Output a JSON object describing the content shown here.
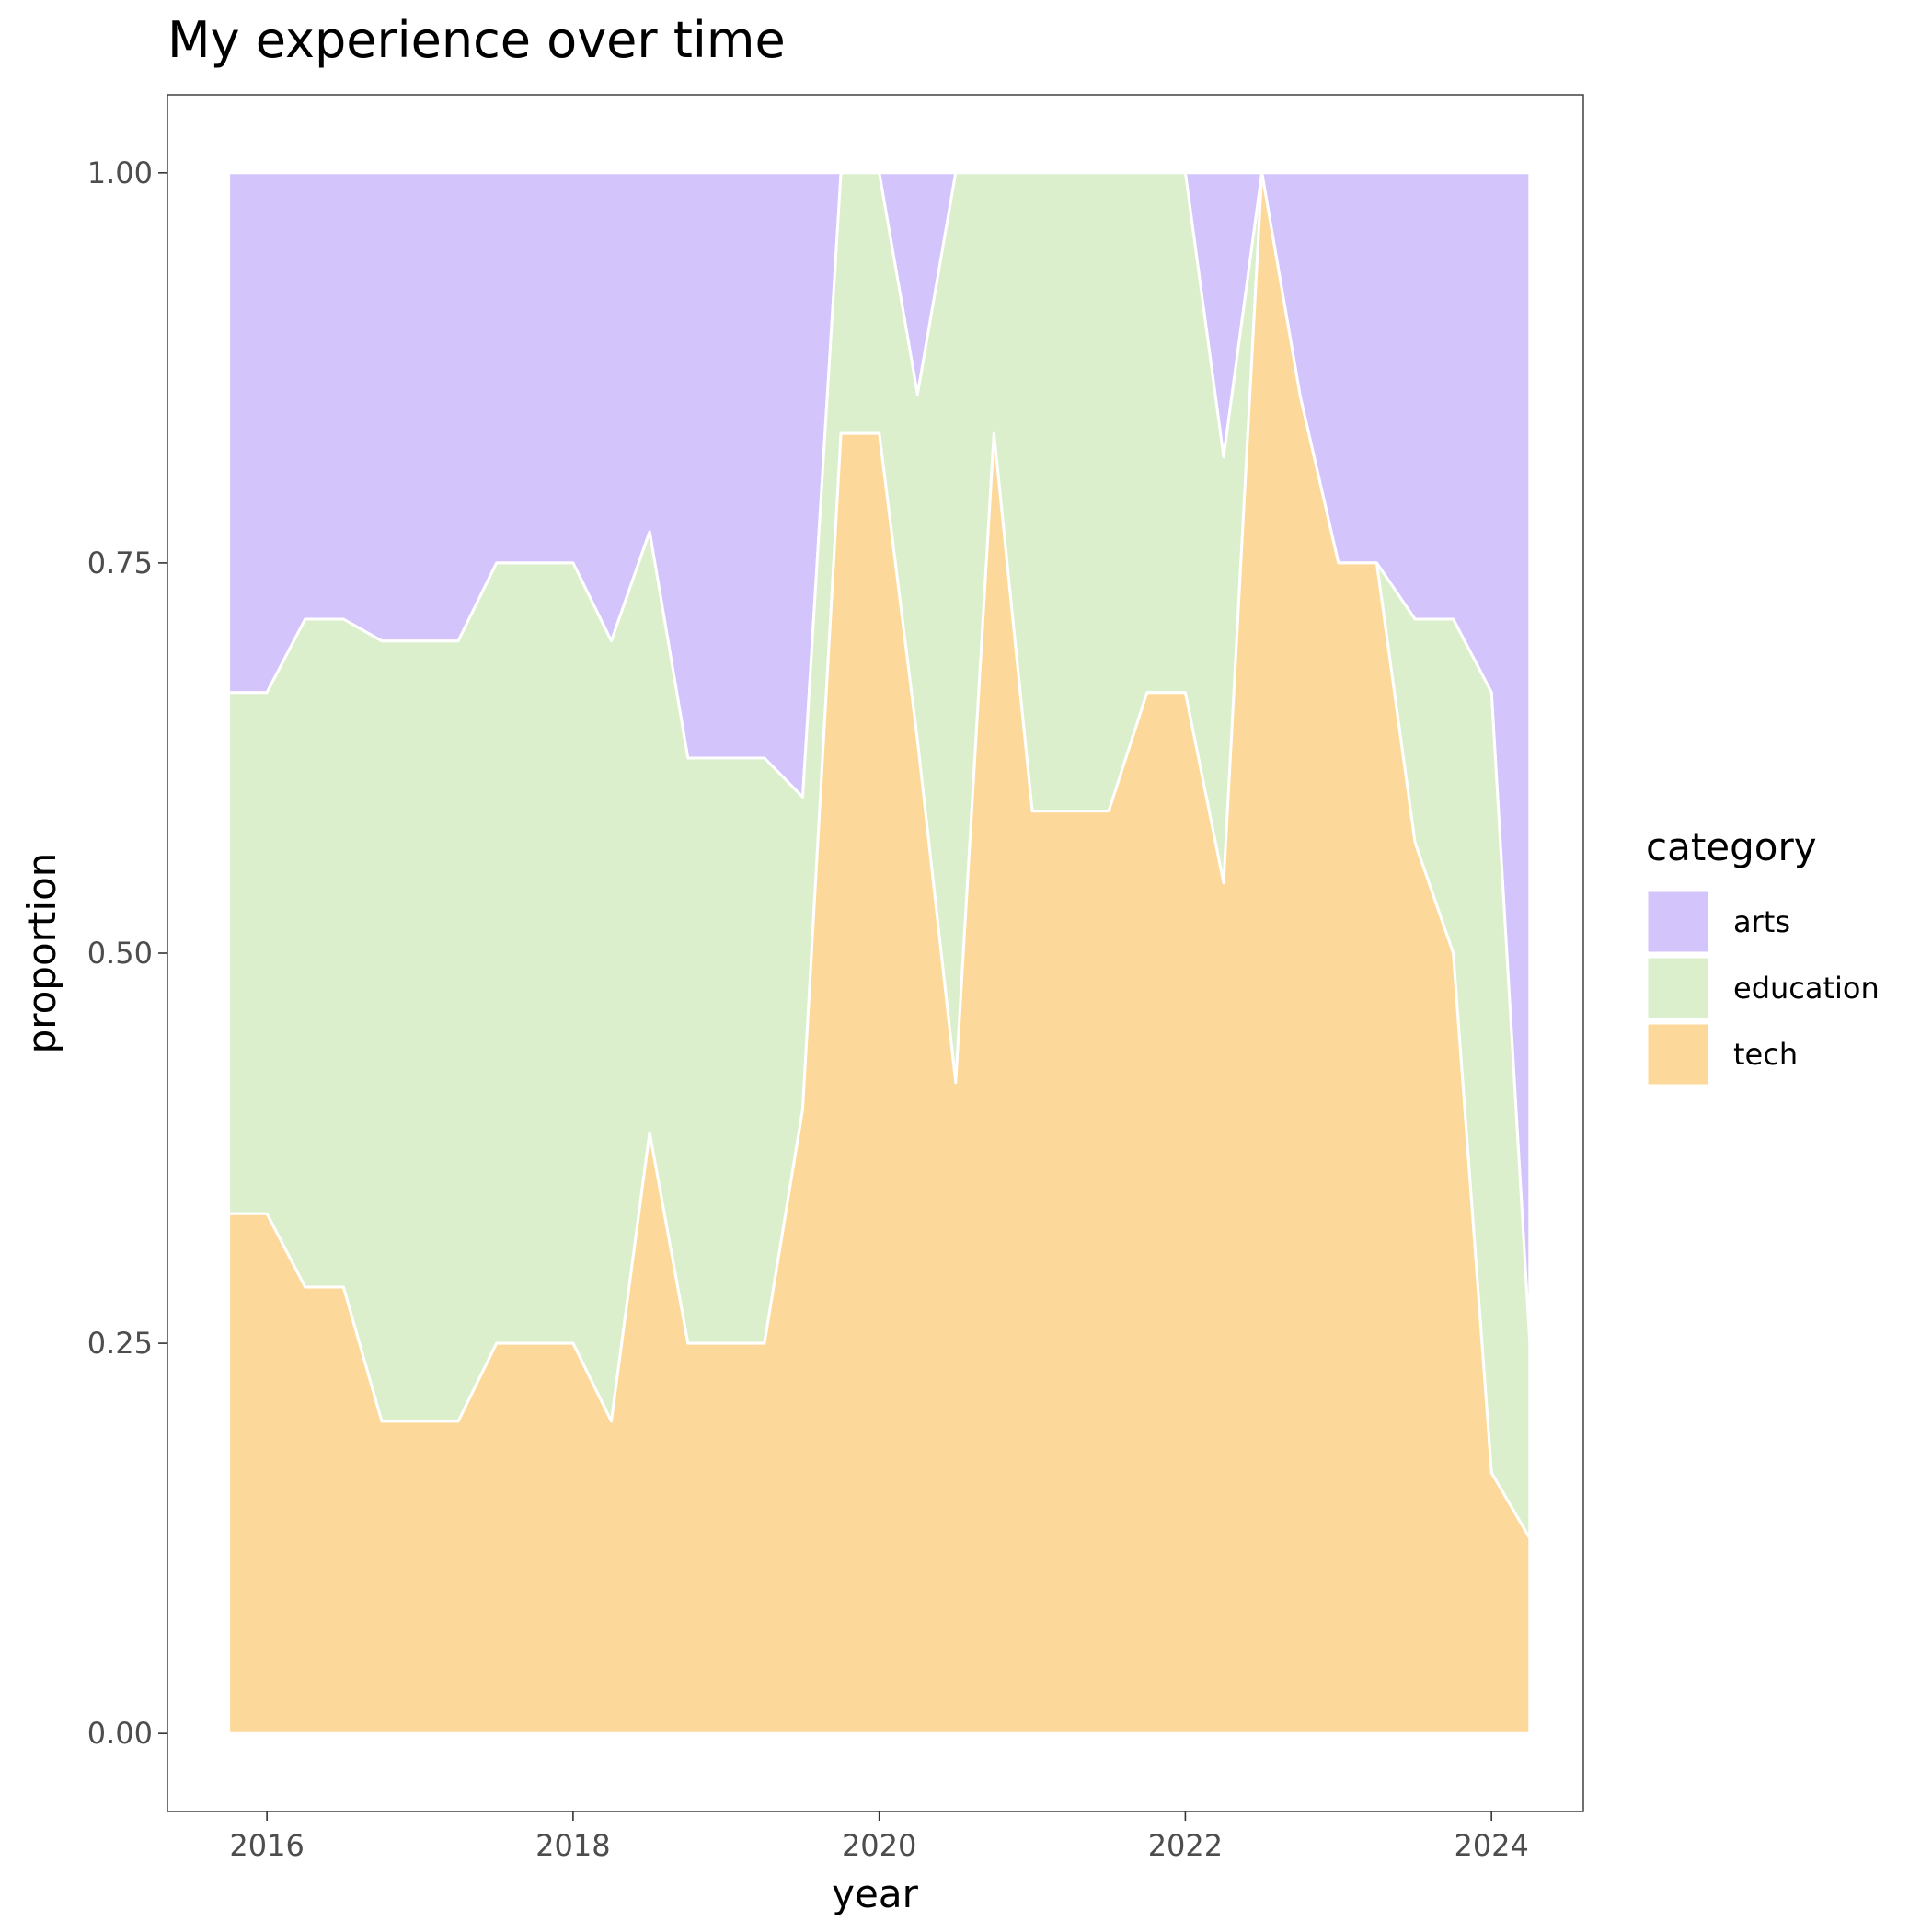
{
  "chart_data": {
    "type": "area",
    "stacked": true,
    "normalized": true,
    "title": "My experience over time",
    "xlabel": "year",
    "ylabel": "proportion",
    "xlim": [
      2015.35,
      2024.6
    ],
    "ylim": [
      -0.05,
      1.05
    ],
    "x_ticks": [
      2016,
      2018,
      2020,
      2022,
      2024
    ],
    "x_tick_labels": [
      "2016",
      "2018",
      "2020",
      "2022",
      "2024"
    ],
    "y_ticks": [
      0,
      0.25,
      0.5,
      0.75,
      1.0
    ],
    "y_tick_labels": [
      "0.00",
      "0.25",
      "0.50",
      "0.75",
      "1.00"
    ],
    "grid": false,
    "panel_border": true,
    "legend": {
      "title": "category",
      "placement": "right",
      "entries": [
        "arts",
        "education",
        "tech"
      ]
    },
    "x": [
      2015.75,
      2016.0,
      2016.25,
      2016.5,
      2016.75,
      2017.0,
      2017.25,
      2017.5,
      2017.75,
      2018.0,
      2018.25,
      2018.5,
      2018.75,
      2019.0,
      2019.25,
      2019.5,
      2019.75,
      2020.0,
      2020.25,
      2020.5,
      2020.75,
      2021.0,
      2021.25,
      2021.5,
      2021.75,
      2022.0,
      2022.25,
      2022.5,
      2022.75,
      2023.0,
      2023.25,
      2023.5,
      2023.75,
      2024.0,
      2024.25
    ],
    "series": [
      {
        "name": "tech",
        "color": "#fdd89b",
        "values": [
          0.333,
          0.333,
          0.286,
          0.286,
          0.2,
          0.2,
          0.2,
          0.25,
          0.25,
          0.25,
          0.2,
          0.385,
          0.25,
          0.25,
          0.25,
          0.4,
          0.833,
          0.833,
          0.636,
          0.417,
          0.833,
          0.591,
          0.591,
          0.591,
          0.667,
          0.667,
          0.545,
          1.0,
          0.857,
          0.75,
          0.75,
          0.571,
          0.5,
          0.167,
          0.125
        ]
      },
      {
        "name": "education",
        "color": "#dbefcc",
        "values": [
          0.334,
          0.334,
          0.428,
          0.428,
          0.5,
          0.5,
          0.5,
          0.5,
          0.5,
          0.5,
          0.5,
          0.385,
          0.375,
          0.375,
          0.375,
          0.2,
          0.167,
          0.167,
          0.222,
          0.583,
          0.167,
          0.409,
          0.409,
          0.409,
          0.333,
          0.333,
          0.273,
          0.0,
          0.0,
          0.0,
          0.0,
          0.143,
          0.214,
          0.5,
          0.125
        ]
      },
      {
        "name": "arts",
        "color": "#d3c4fb",
        "values": [
          0.333,
          0.333,
          0.286,
          0.286,
          0.3,
          0.3,
          0.3,
          0.25,
          0.25,
          0.25,
          0.3,
          0.23,
          0.375,
          0.375,
          0.375,
          0.4,
          0.0,
          0.0,
          0.142,
          0.0,
          0.0,
          0.0,
          0.0,
          0.0,
          0.0,
          0.0,
          0.182,
          0.0,
          0.143,
          0.25,
          0.25,
          0.286,
          0.286,
          0.333,
          0.75
        ]
      }
    ]
  }
}
